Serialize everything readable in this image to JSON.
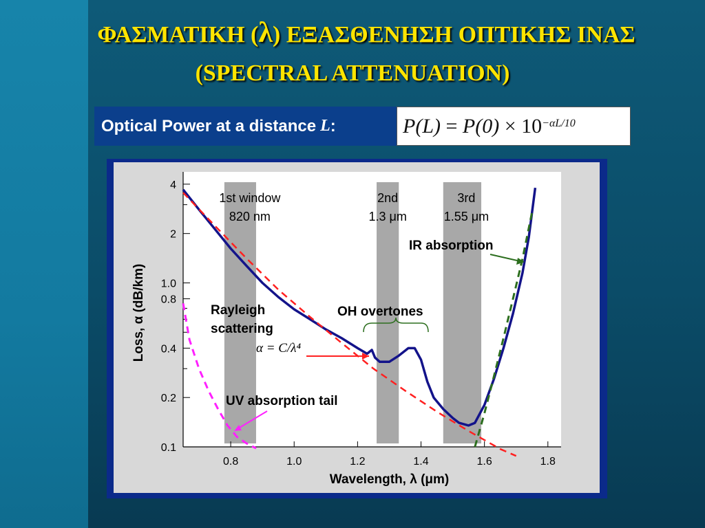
{
  "header": {
    "title_greek_part1": "ΦΑΣΜΑΤΙΚΗ (",
    "title_lambda": "λ",
    "title_greek_part2": ")   ΕΞΑΣΘΕΝΗΣΗ ΟΠΤΙΚΗΣ ΙΝΑΣ",
    "title_english": "(SPECTRAL ATTENUATION)"
  },
  "power_box": {
    "label": "Optical Power at a distance",
    "var": "L",
    "colon": ":"
  },
  "formula": {
    "lhs": "P(L)",
    "eq": " = ",
    "rhs_a": "P(0)",
    "times": " × ",
    "base": "10",
    "exponent": "−αL/10"
  },
  "colors": {
    "title": "#ffe400",
    "measured": "#13138a",
    "rayleigh": "#ff2020",
    "uv": "#ff20ff",
    "ir": "#2c6e1e",
    "window": "#a8a8a8"
  },
  "chart_data": {
    "type": "line",
    "xlabel": "Wavelength, λ (μm)",
    "ylabel": "Loss, α (dB/km)",
    "xscale": "linear",
    "yscale": "log",
    "xlim": [
      0.65,
      1.82
    ],
    "ylim": [
      0.1,
      4.4
    ],
    "x_ticks": [
      0.8,
      1.0,
      1.2,
      1.4,
      1.6,
      1.8
    ],
    "x_tick_labels": [
      "0.8",
      "1.0",
      "1.2",
      "1.4",
      "1.6",
      "1.8"
    ],
    "y_ticks": [
      0.1,
      0.2,
      0.4,
      0.8,
      1.0,
      2,
      4
    ],
    "y_tick_labels": [
      "0.1",
      "0.2",
      "0.4",
      "0.8",
      "1.0",
      "2",
      "4"
    ],
    "grid": false,
    "windows": [
      {
        "name": "1st window",
        "sub": "820 nm",
        "x_range": [
          0.78,
          0.88
        ]
      },
      {
        "name": "2nd",
        "sub": "1.3 μm",
        "x_range": [
          1.26,
          1.33
        ]
      },
      {
        "name": "3rd",
        "sub": "1.55 μm",
        "x_range": [
          1.47,
          1.59
        ]
      }
    ],
    "series": [
      {
        "name": "",
        "style": "solid",
        "x": [
          0.65,
          0.7,
          0.75,
          0.8,
          0.85,
          0.9,
          0.95,
          1.0,
          1.05,
          1.1,
          1.15,
          1.2,
          1.23,
          1.245,
          1.255,
          1.27,
          1.3,
          1.33,
          1.36,
          1.38,
          1.4,
          1.42,
          1.44,
          1.47,
          1.5,
          1.52,
          1.55,
          1.57,
          1.6,
          1.63,
          1.66,
          1.69,
          1.72,
          1.74,
          1.76
        ],
        "y": [
          3.7,
          2.8,
          2.13,
          1.62,
          1.27,
          1.0,
          0.82,
          0.69,
          0.6,
          0.52,
          0.46,
          0.4,
          0.37,
          0.39,
          0.35,
          0.33,
          0.33,
          0.36,
          0.4,
          0.4,
          0.34,
          0.25,
          0.2,
          0.17,
          0.15,
          0.14,
          0.135,
          0.14,
          0.18,
          0.26,
          0.4,
          0.65,
          1.15,
          1.9,
          3.8
        ]
      },
      {
        "name": "",
        "style": "dashed",
        "x": [
          0.65,
          0.75,
          0.85,
          0.95,
          1.05,
          1.15,
          1.25,
          1.35,
          1.45,
          1.55,
          1.65,
          1.7
        ],
        "y": [
          3.55,
          2.23,
          1.41,
          0.91,
          0.62,
          0.43,
          0.3,
          0.22,
          0.164,
          0.125,
          0.097,
          0.088
        ]
      },
      {
        "name": "",
        "style": "dashed",
        "x": [
          0.65,
          0.67,
          0.7,
          0.73,
          0.76,
          0.79,
          0.82,
          0.85,
          0.88
        ],
        "y": [
          0.75,
          0.45,
          0.3,
          0.22,
          0.17,
          0.135,
          0.115,
          0.105,
          0.098
        ]
      },
      {
        "name": "",
        "style": "dashed",
        "x": [
          1.57,
          1.6,
          1.63,
          1.66,
          1.69,
          1.72,
          1.75
        ],
        "y": [
          0.1,
          0.16,
          0.27,
          0.46,
          0.8,
          1.4,
          2.7
        ]
      }
    ],
    "annotations": [
      {
        "text": "Rayleigh",
        "x": 0.8,
        "y": 0.72
      },
      {
        "text": "scattering",
        "x": 0.8,
        "y": 0.59
      },
      {
        "text": "α = C/λ⁴",
        "x": 0.93,
        "y": 0.41
      },
      {
        "text": "OH overtones",
        "x": 1.34,
        "y": 0.71
      },
      {
        "text": "IR absorption",
        "x": 1.6,
        "y": 2.0
      },
      {
        "text": "UV absorption tail",
        "x": 0.77,
        "y": 0.19
      }
    ]
  }
}
